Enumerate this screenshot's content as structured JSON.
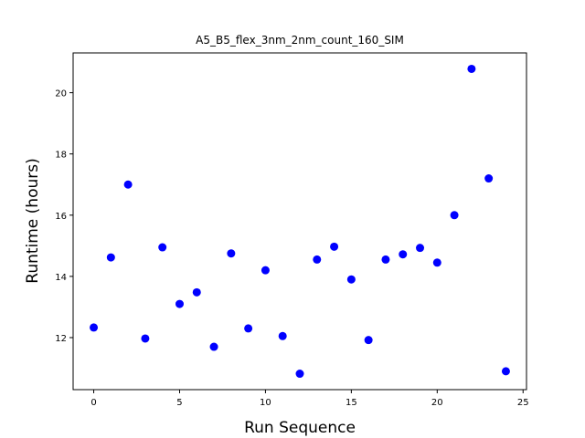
{
  "chart_data": {
    "type": "scatter",
    "title": "A5_B5_flex_3nm_2nm_count_160_SIM",
    "xlabel": "Run Sequence",
    "ylabel": "Runtime (hours)",
    "xlim": [
      -1.2,
      25.2
    ],
    "ylim": [
      10.3,
      21.3
    ],
    "xticks": [
      0,
      5,
      10,
      15,
      20,
      25
    ],
    "yticks": [
      12,
      14,
      16,
      18,
      20
    ],
    "grid": false,
    "marker_color": "#0000ff",
    "x": [
      0,
      1,
      2,
      3,
      4,
      5,
      6,
      7,
      8,
      9,
      10,
      11,
      12,
      13,
      14,
      15,
      16,
      17,
      18,
      19,
      20,
      21,
      22,
      23,
      24
    ],
    "y": [
      12.33,
      14.62,
      17.0,
      11.97,
      14.95,
      13.1,
      13.48,
      11.7,
      14.75,
      12.3,
      14.2,
      12.05,
      10.82,
      14.55,
      14.97,
      13.9,
      11.92,
      14.55,
      14.72,
      14.93,
      14.45,
      16.0,
      20.78,
      17.2,
      10.9
    ]
  }
}
